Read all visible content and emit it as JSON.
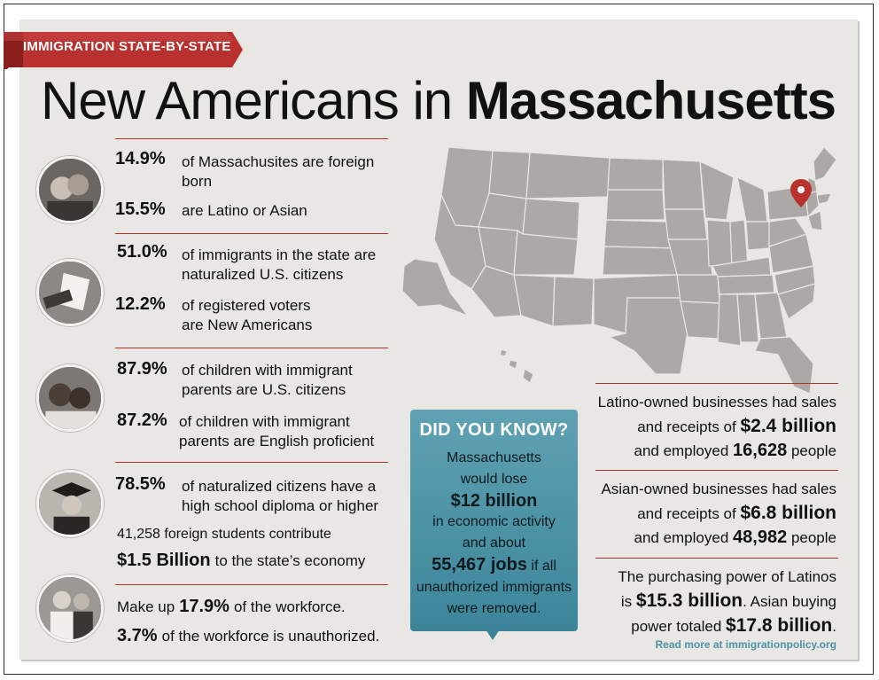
{
  "header": {
    "ribbon_label": "IMMIGRATION STATE-BY-STATE",
    "title_prefix": "New Americans in",
    "title_state": "Massachusetts"
  },
  "stats": {
    "s1_pct": "14.9%",
    "s1_text": "of Massachusites are foreign born",
    "s2_pct": "15.5%",
    "s2_text": "are Latino or Asian",
    "s3_pct": "51.0%",
    "s3_text": "of immigrants in the state are naturalized U.S. citizens",
    "s4_pct": "12.2%",
    "s4_text": "of registered voters are New Americans",
    "s5_pct": "87.9%",
    "s5_text": "of children with immigrant parents are U.S. citizens",
    "s6_pct": "87.2%",
    "s6_text": "of children with immigrant parents are English proficient",
    "s7_pct": "78.5%",
    "s7_text": "of naturalized citizens have a high school diploma or higher",
    "s8_text": "41,258 foreign students contribute",
    "s8_amount": "$1.5 Billion",
    "s8_tail": "to the state’s economy",
    "s9_prefix": "Make up",
    "s9_pct": "17.9%",
    "s9_tail": "of the workforce.",
    "s10_pct": "3.7%",
    "s10_tail": "of the workforce is unauthorized."
  },
  "did_you_know": {
    "title": "DID YOU KNOW?",
    "l1": "Massachusetts",
    "l2": "would lose",
    "big1": "$12 billion",
    "l3": "in economic activity",
    "l4": "and about",
    "big2": "55,467 jobs",
    "l5": "if all",
    "l6": "unauthorized immigrants",
    "l7": "were removed."
  },
  "right": {
    "b1_l1": "Latino-owned businesses had sales",
    "b1_l2": "and receipts of",
    "b1_amount": "$2.4 billion",
    "b1_l3": "and employed",
    "b1_count": "16,628",
    "b1_tail": "people",
    "b2_l1": "Asian-owned businesses had sales",
    "b2_l2": "and receipts of",
    "b2_amount": "$6.8 billion",
    "b2_l3": "and employed",
    "b2_count": "48,982",
    "b2_tail": "people",
    "b3_l1": "The purchasing power of Latinos",
    "b3_l2a": "is",
    "b3_amount1": "$15.3 billion",
    "b3_l2b": ". Asian buying",
    "b3_l3": "power totaled",
    "b3_amount2": "$17.8 billion",
    "b3_l3b": ".",
    "read_more": "Read more at immigrationpolicy.org"
  },
  "colors": {
    "accent_red": "#b8312f",
    "teal": "#3c8599",
    "panel_bg": "#e8e7e4"
  },
  "icons": [
    "map-pin-icon"
  ]
}
